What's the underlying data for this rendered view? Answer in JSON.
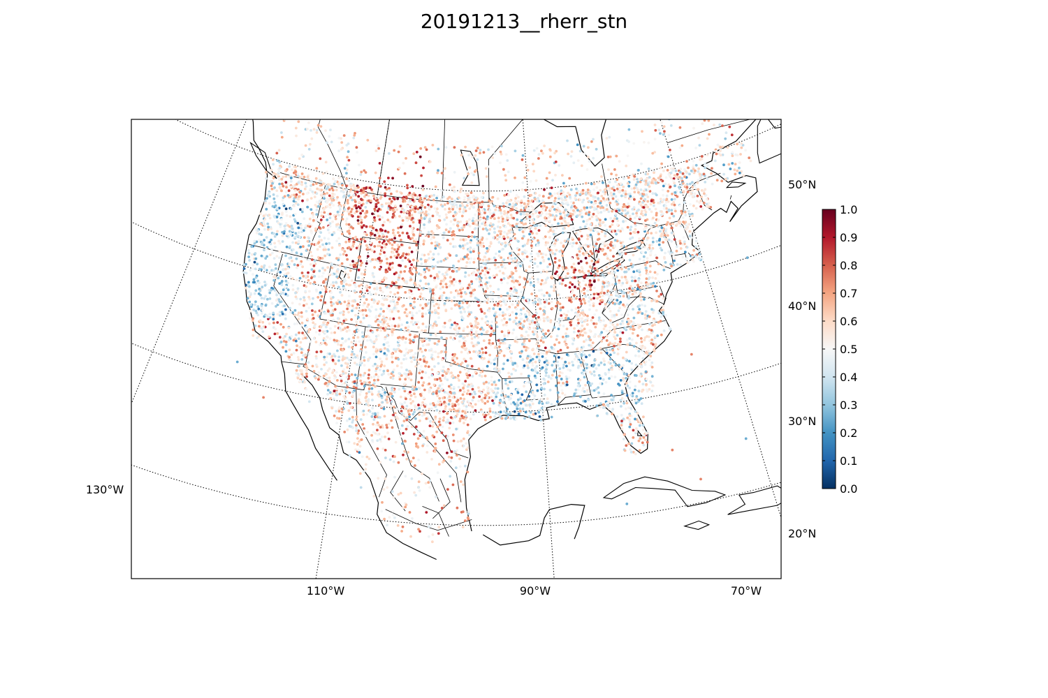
{
  "title": "20191213__rherr_stn",
  "map": {
    "projection": "lambert-conformal",
    "meridians": [
      {
        "lon": -130,
        "label": "130°W"
      },
      {
        "lon": -110,
        "label": "110°W"
      },
      {
        "lon": -90,
        "label": "90°W"
      },
      {
        "lon": -70,
        "label": "70°W"
      }
    ],
    "parallels": [
      {
        "lat": 20,
        "label": "20°N"
      },
      {
        "lat": 30,
        "label": "30°N"
      },
      {
        "lat": 40,
        "label": "40°N"
      },
      {
        "lat": 50,
        "label": "50°N"
      }
    ],
    "colors": {
      "coast": "#000000",
      "border": "#000000",
      "graticule": "#000000",
      "background": "#ffffff"
    }
  },
  "colorbar": {
    "min": 0.0,
    "max": 1.0,
    "colormap": "RdBu_r",
    "ticks": [
      "0.0",
      "0.1",
      "0.2",
      "0.3",
      "0.4",
      "0.5",
      "0.6",
      "0.7",
      "0.8",
      "0.9",
      "1.0"
    ],
    "stops": [
      "#053061",
      "#2166ac",
      "#4393c3",
      "#92c5de",
      "#d1e5f0",
      "#f7f7f7",
      "#fddbc7",
      "#f4a582",
      "#d6604d",
      "#b2182b",
      "#67001f"
    ]
  },
  "stations": {
    "description_visible": "scatter of station values colored 0.0-1.0",
    "value_range": [
      0.0,
      1.0
    ],
    "approx_count": 7000
  }
}
